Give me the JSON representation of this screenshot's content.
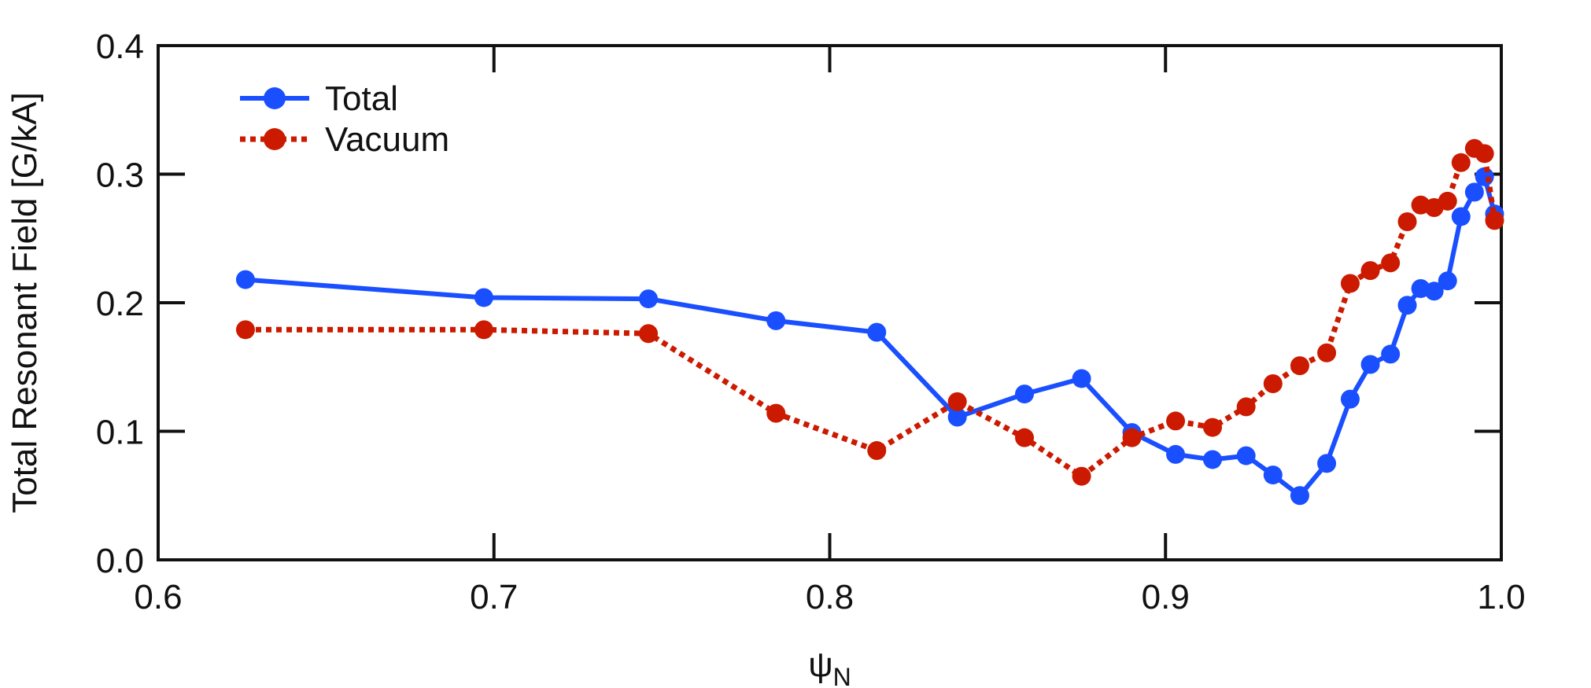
{
  "chart_data": {
    "type": "line",
    "title": "",
    "xlabel": "ψ",
    "xlabel_subscript": "N",
    "ylabel": "Total Resonant Field [G/kA]",
    "xlim": [
      0.6,
      1.0
    ],
    "ylim": [
      0.0,
      0.4
    ],
    "xticks": [
      0.6,
      0.7,
      0.8,
      0.9,
      1.0
    ],
    "xtick_labels": [
      "0.6",
      "0.7",
      "0.8",
      "0.9",
      "1.0"
    ],
    "yticks": [
      0.0,
      0.1,
      0.2,
      0.3,
      0.4
    ],
    "ytick_labels": [
      "0.0",
      "0.1",
      "0.2",
      "0.3",
      "0.4"
    ],
    "grid": false,
    "legend_position": "top-left",
    "series": [
      {
        "name": "Total",
        "color": "#1a4fff",
        "line_style": "solid",
        "marker": "circle",
        "x": [
          0.626,
          0.697,
          0.746,
          0.784,
          0.814,
          0.838,
          0.858,
          0.875,
          0.89,
          0.903,
          0.914,
          0.924,
          0.932,
          0.94,
          0.948,
          0.955,
          0.961,
          0.967,
          0.972,
          0.976,
          0.98,
          0.984,
          0.988,
          0.992,
          0.995,
          0.998
        ],
        "y": [
          0.218,
          0.204,
          0.203,
          0.186,
          0.177,
          0.111,
          0.129,
          0.141,
          0.099,
          0.082,
          0.078,
          0.081,
          0.066,
          0.05,
          0.075,
          0.125,
          0.152,
          0.16,
          0.198,
          0.211,
          0.209,
          0.217,
          0.267,
          0.286,
          0.298,
          0.269
        ]
      },
      {
        "name": "Vacuum",
        "color": "#cc1a00",
        "line_style": "dotted",
        "marker": "circle",
        "x": [
          0.626,
          0.697,
          0.746,
          0.784,
          0.814,
          0.838,
          0.858,
          0.875,
          0.89,
          0.903,
          0.914,
          0.924,
          0.932,
          0.94,
          0.948,
          0.955,
          0.961,
          0.967,
          0.972,
          0.976,
          0.98,
          0.984,
          0.988,
          0.992,
          0.995,
          0.998
        ],
        "y": [
          0.179,
          0.179,
          0.176,
          0.114,
          0.085,
          0.123,
          0.095,
          0.065,
          0.095,
          0.108,
          0.103,
          0.119,
          0.137,
          0.151,
          0.161,
          0.215,
          0.225,
          0.231,
          0.263,
          0.276,
          0.274,
          0.279,
          0.309,
          0.32,
          0.316,
          0.264
        ]
      }
    ]
  }
}
